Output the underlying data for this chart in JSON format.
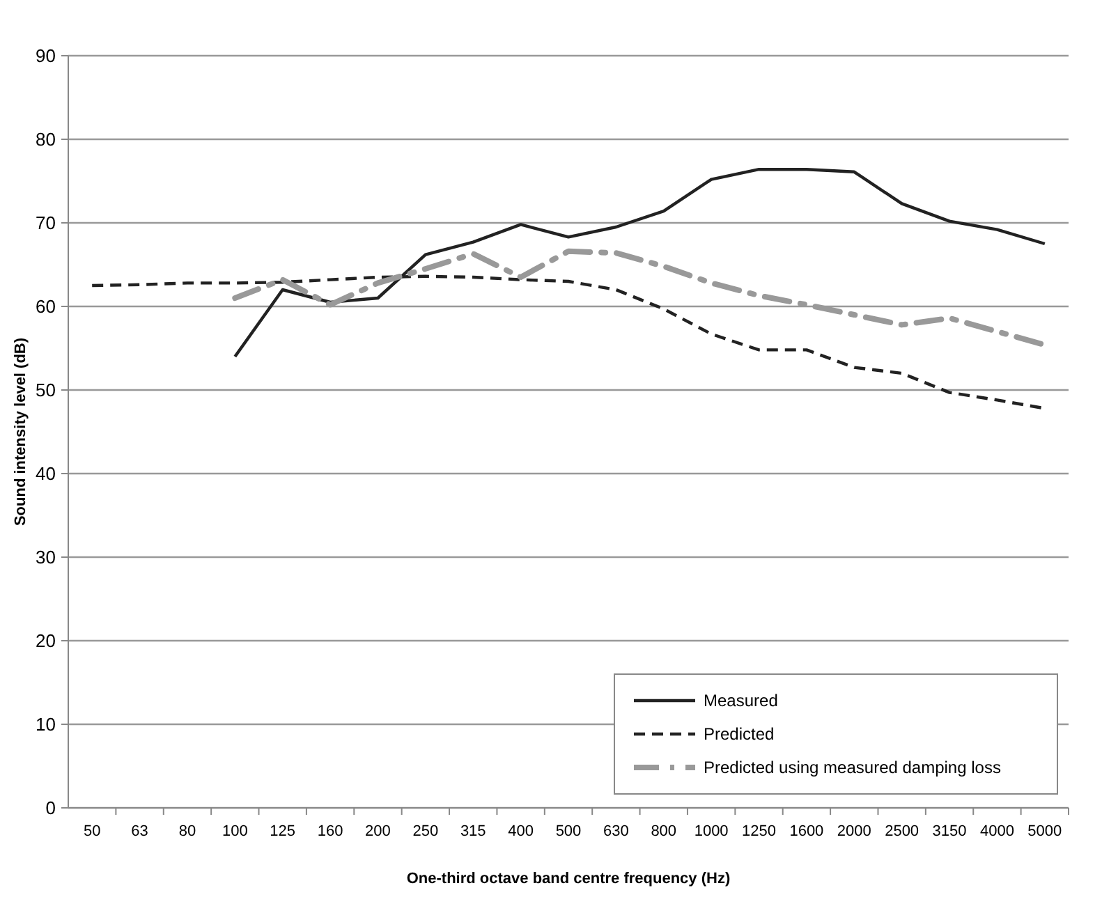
{
  "chart_data": {
    "type": "line",
    "xlabel": "One-third octave band centre frequency (Hz)",
    "ylabel": "Sound intensity level (dB)",
    "categories": [
      "50",
      "63",
      "80",
      "100",
      "125",
      "160",
      "200",
      "250",
      "315",
      "400",
      "500",
      "630",
      "800",
      "1000",
      "1250",
      "1600",
      "2000",
      "2500",
      "3150",
      "4000",
      "5000"
    ],
    "ylim": [
      0,
      90
    ],
    "yticks": [
      0,
      10,
      20,
      30,
      40,
      50,
      60,
      70,
      80,
      90
    ],
    "grid": "y",
    "legend": "bottom right",
    "series": [
      {
        "name": "Measured",
        "color": "#222222",
        "line_style": "solid",
        "values": [
          null,
          null,
          null,
          54,
          62,
          60.5,
          61,
          66.2,
          67.7,
          69.8,
          68.3,
          69.5,
          71.4,
          75.2,
          76.4,
          76.4,
          76.1,
          72.3,
          70.2,
          69.2,
          67.5
        ]
      },
      {
        "name": "Predicted",
        "color": "#222222",
        "line_style": "dashed",
        "values": [
          62.5,
          62.6,
          62.8,
          62.8,
          62.9,
          63.2,
          63.5,
          63.6,
          63.5,
          63.2,
          63.0,
          62,
          59.7,
          56.7,
          54.8,
          54.8,
          52.7,
          52.0,
          49.7,
          48.8,
          47.8
        ]
      },
      {
        "name": "Predicted using measured damping loss",
        "color": "#999999",
        "line_style": "dashdot",
        "values": [
          null,
          null,
          null,
          61,
          63.2,
          60.2,
          62.8,
          64.5,
          66.3,
          63.5,
          66.6,
          66.4,
          64.8,
          62.8,
          61.3,
          60.2,
          59,
          57.8,
          58.6,
          57,
          55.4
        ]
      }
    ]
  }
}
